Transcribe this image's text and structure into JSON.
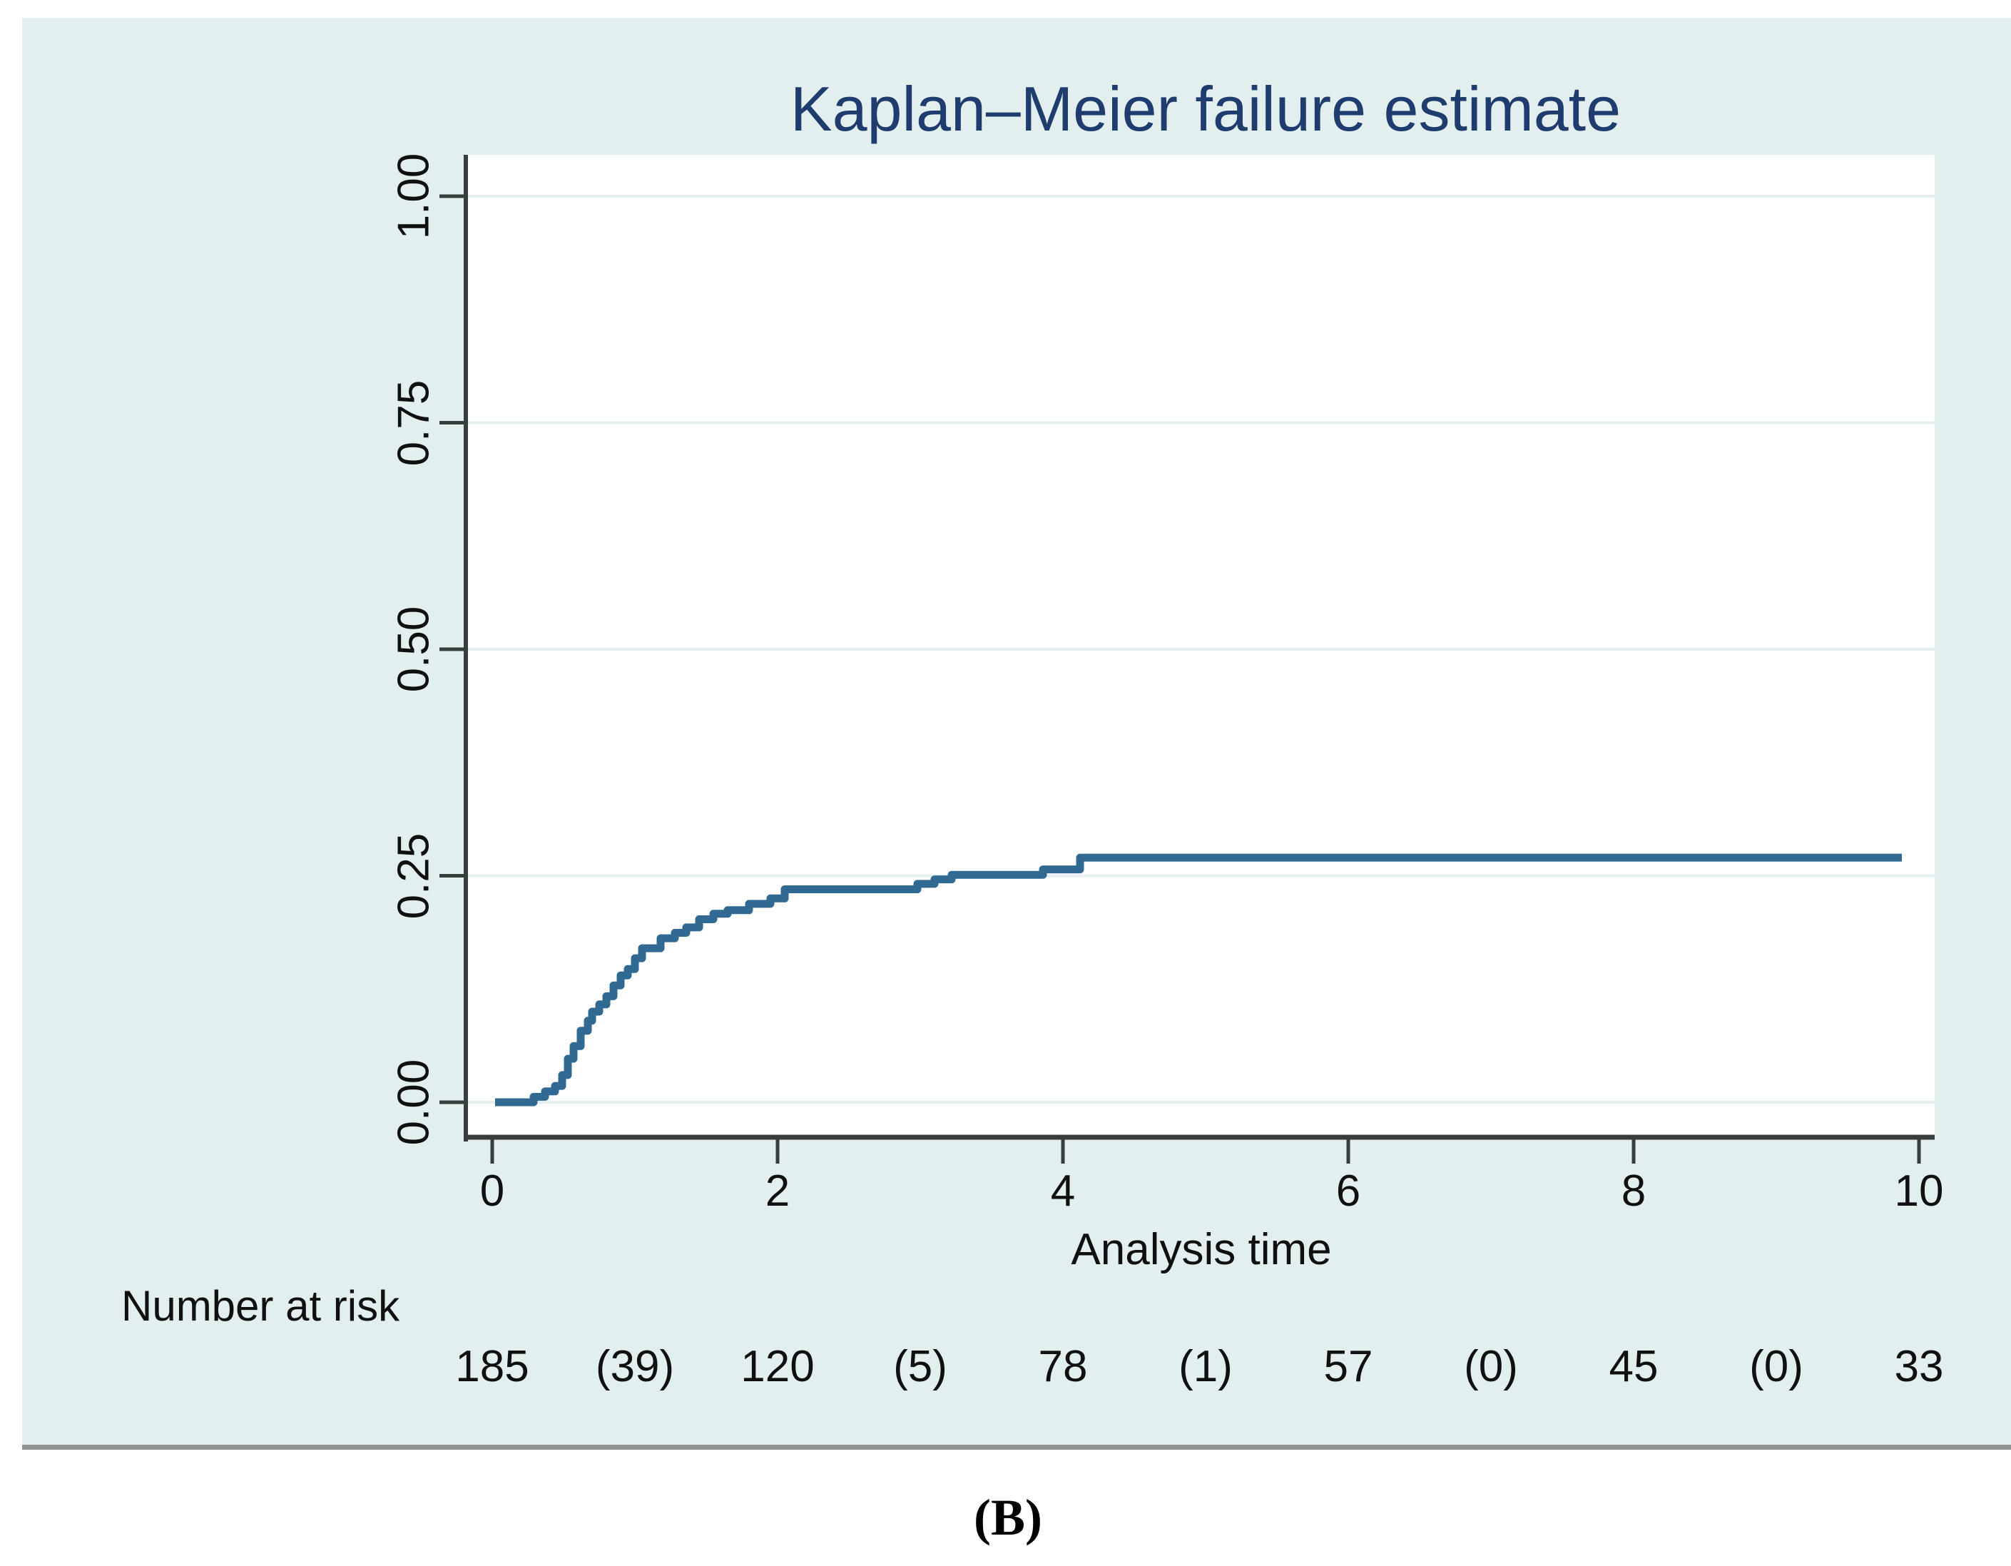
{
  "figure": {
    "title": "Kaplan–Meier failure estimate",
    "panel_label": "(B)",
    "colors": {
      "panel_bg": "#e3eeee",
      "plot_bg": "#ffffff",
      "grid": "#e4f0f2",
      "axis": "#383d3d",
      "curve": "#306a92",
      "title": "#1e3c6e",
      "text": "#101010",
      "divider": "#8e9494"
    }
  },
  "chart_data": {
    "type": "line",
    "subtype": "kaplan-meier-failure-step",
    "title": "Kaplan–Meier failure estimate",
    "xlabel": "Analysis time",
    "ylabel": "",
    "xlim": [
      -0.18,
      10.28
    ],
    "ylim": [
      0,
      1
    ],
    "grid": true,
    "legend": false,
    "x_ticks": [
      0,
      2,
      4,
      6,
      8,
      10
    ],
    "y_ticks": [
      {
        "v": 0.0,
        "label": "0.00"
      },
      {
        "v": 0.25,
        "label": "0.25"
      },
      {
        "v": 0.5,
        "label": "0.50"
      },
      {
        "v": 0.75,
        "label": "0.75"
      },
      {
        "v": 1.0,
        "label": "1.00"
      }
    ],
    "series": [
      {
        "name": "failure estimate",
        "step_points": [
          [
            0.02,
            0.0
          ],
          [
            0.29,
            0.006
          ],
          [
            0.37,
            0.012
          ],
          [
            0.44,
            0.018
          ],
          [
            0.49,
            0.03
          ],
          [
            0.53,
            0.048
          ],
          [
            0.57,
            0.062
          ],
          [
            0.62,
            0.079
          ],
          [
            0.67,
            0.09
          ],
          [
            0.7,
            0.1
          ],
          [
            0.75,
            0.108
          ],
          [
            0.8,
            0.117
          ],
          [
            0.85,
            0.129
          ],
          [
            0.9,
            0.14
          ],
          [
            0.95,
            0.147
          ],
          [
            1.0,
            0.159
          ],
          [
            1.05,
            0.17
          ],
          [
            1.18,
            0.181
          ],
          [
            1.28,
            0.187
          ],
          [
            1.36,
            0.193
          ],
          [
            1.45,
            0.202
          ],
          [
            1.55,
            0.208
          ],
          [
            1.65,
            0.212
          ],
          [
            1.8,
            0.219
          ],
          [
            1.95,
            0.225
          ],
          [
            2.05,
            0.235
          ],
          [
            2.98,
            0.241
          ],
          [
            3.1,
            0.246
          ],
          [
            3.22,
            0.251
          ],
          [
            3.86,
            0.257
          ],
          [
            4.12,
            0.27
          ],
          [
            9.88,
            0.27
          ]
        ]
      }
    ],
    "number_at_risk": {
      "label": "Number at risk",
      "entries": [
        {
          "t": 0,
          "text": "185"
        },
        {
          "t": 1,
          "text": "(39)"
        },
        {
          "t": 2,
          "text": "120"
        },
        {
          "t": 3,
          "text": "(5)"
        },
        {
          "t": 4,
          "text": "78"
        },
        {
          "t": 5,
          "text": "(1)"
        },
        {
          "t": 6,
          "text": "57"
        },
        {
          "t": 7,
          "text": "(0)"
        },
        {
          "t": 8,
          "text": "45"
        },
        {
          "t": 9,
          "text": "(0)"
        },
        {
          "t": 10,
          "text": "33"
        }
      ]
    }
  }
}
